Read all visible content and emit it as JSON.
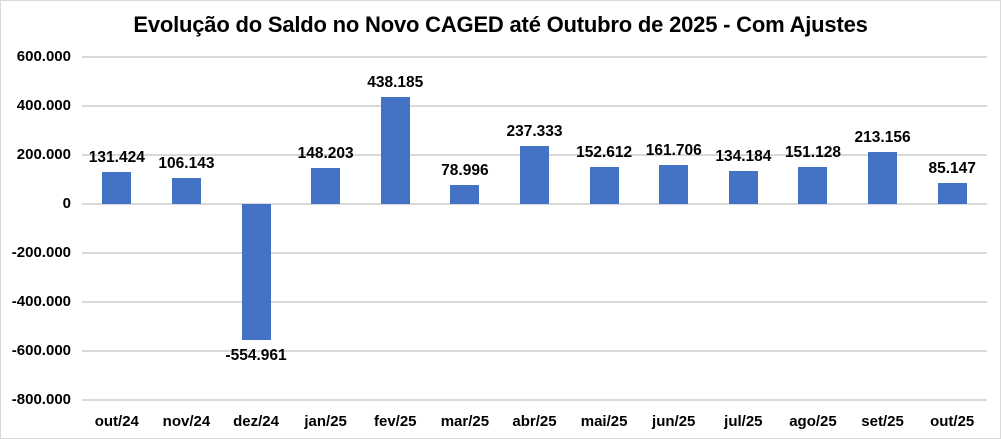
{
  "chart_data": {
    "type": "bar",
    "title": "Evolução do Saldo no Novo CAGED até Outubro de 2025 - Com Ajustes",
    "categories": [
      "out/24",
      "nov/24",
      "dez/24",
      "jan/25",
      "fev/25",
      "mar/25",
      "abr/25",
      "mai/25",
      "jun/25",
      "jul/25",
      "ago/25",
      "set/25",
      "out/25"
    ],
    "values": [
      131424,
      106143,
      -554961,
      148203,
      438185,
      78996,
      237333,
      152612,
      161706,
      134184,
      151128,
      213156,
      85147
    ],
    "value_labels": [
      "131.424",
      "106.143",
      "-554.961",
      "148.203",
      "438.185",
      "78.996",
      "237.333",
      "152.612",
      "161.706",
      "134.184",
      "151.128",
      "213.156",
      "85.147"
    ],
    "y_ticks": [
      600000,
      400000,
      200000,
      0,
      -200000,
      -400000,
      -600000,
      -800000
    ],
    "y_tick_labels": [
      "600.000",
      "400.000",
      "200.000",
      "0",
      "-200.000",
      "-400.000",
      "-600.000",
      "-800.000"
    ],
    "ylim": [
      -800000,
      600000
    ],
    "xlabel": "",
    "ylabel": "",
    "legend": "none",
    "grid": true,
    "colors": {
      "bar": "#4472C4",
      "gridline": "#d9d9d9",
      "text": "#000000",
      "background": "#ffffff"
    }
  }
}
